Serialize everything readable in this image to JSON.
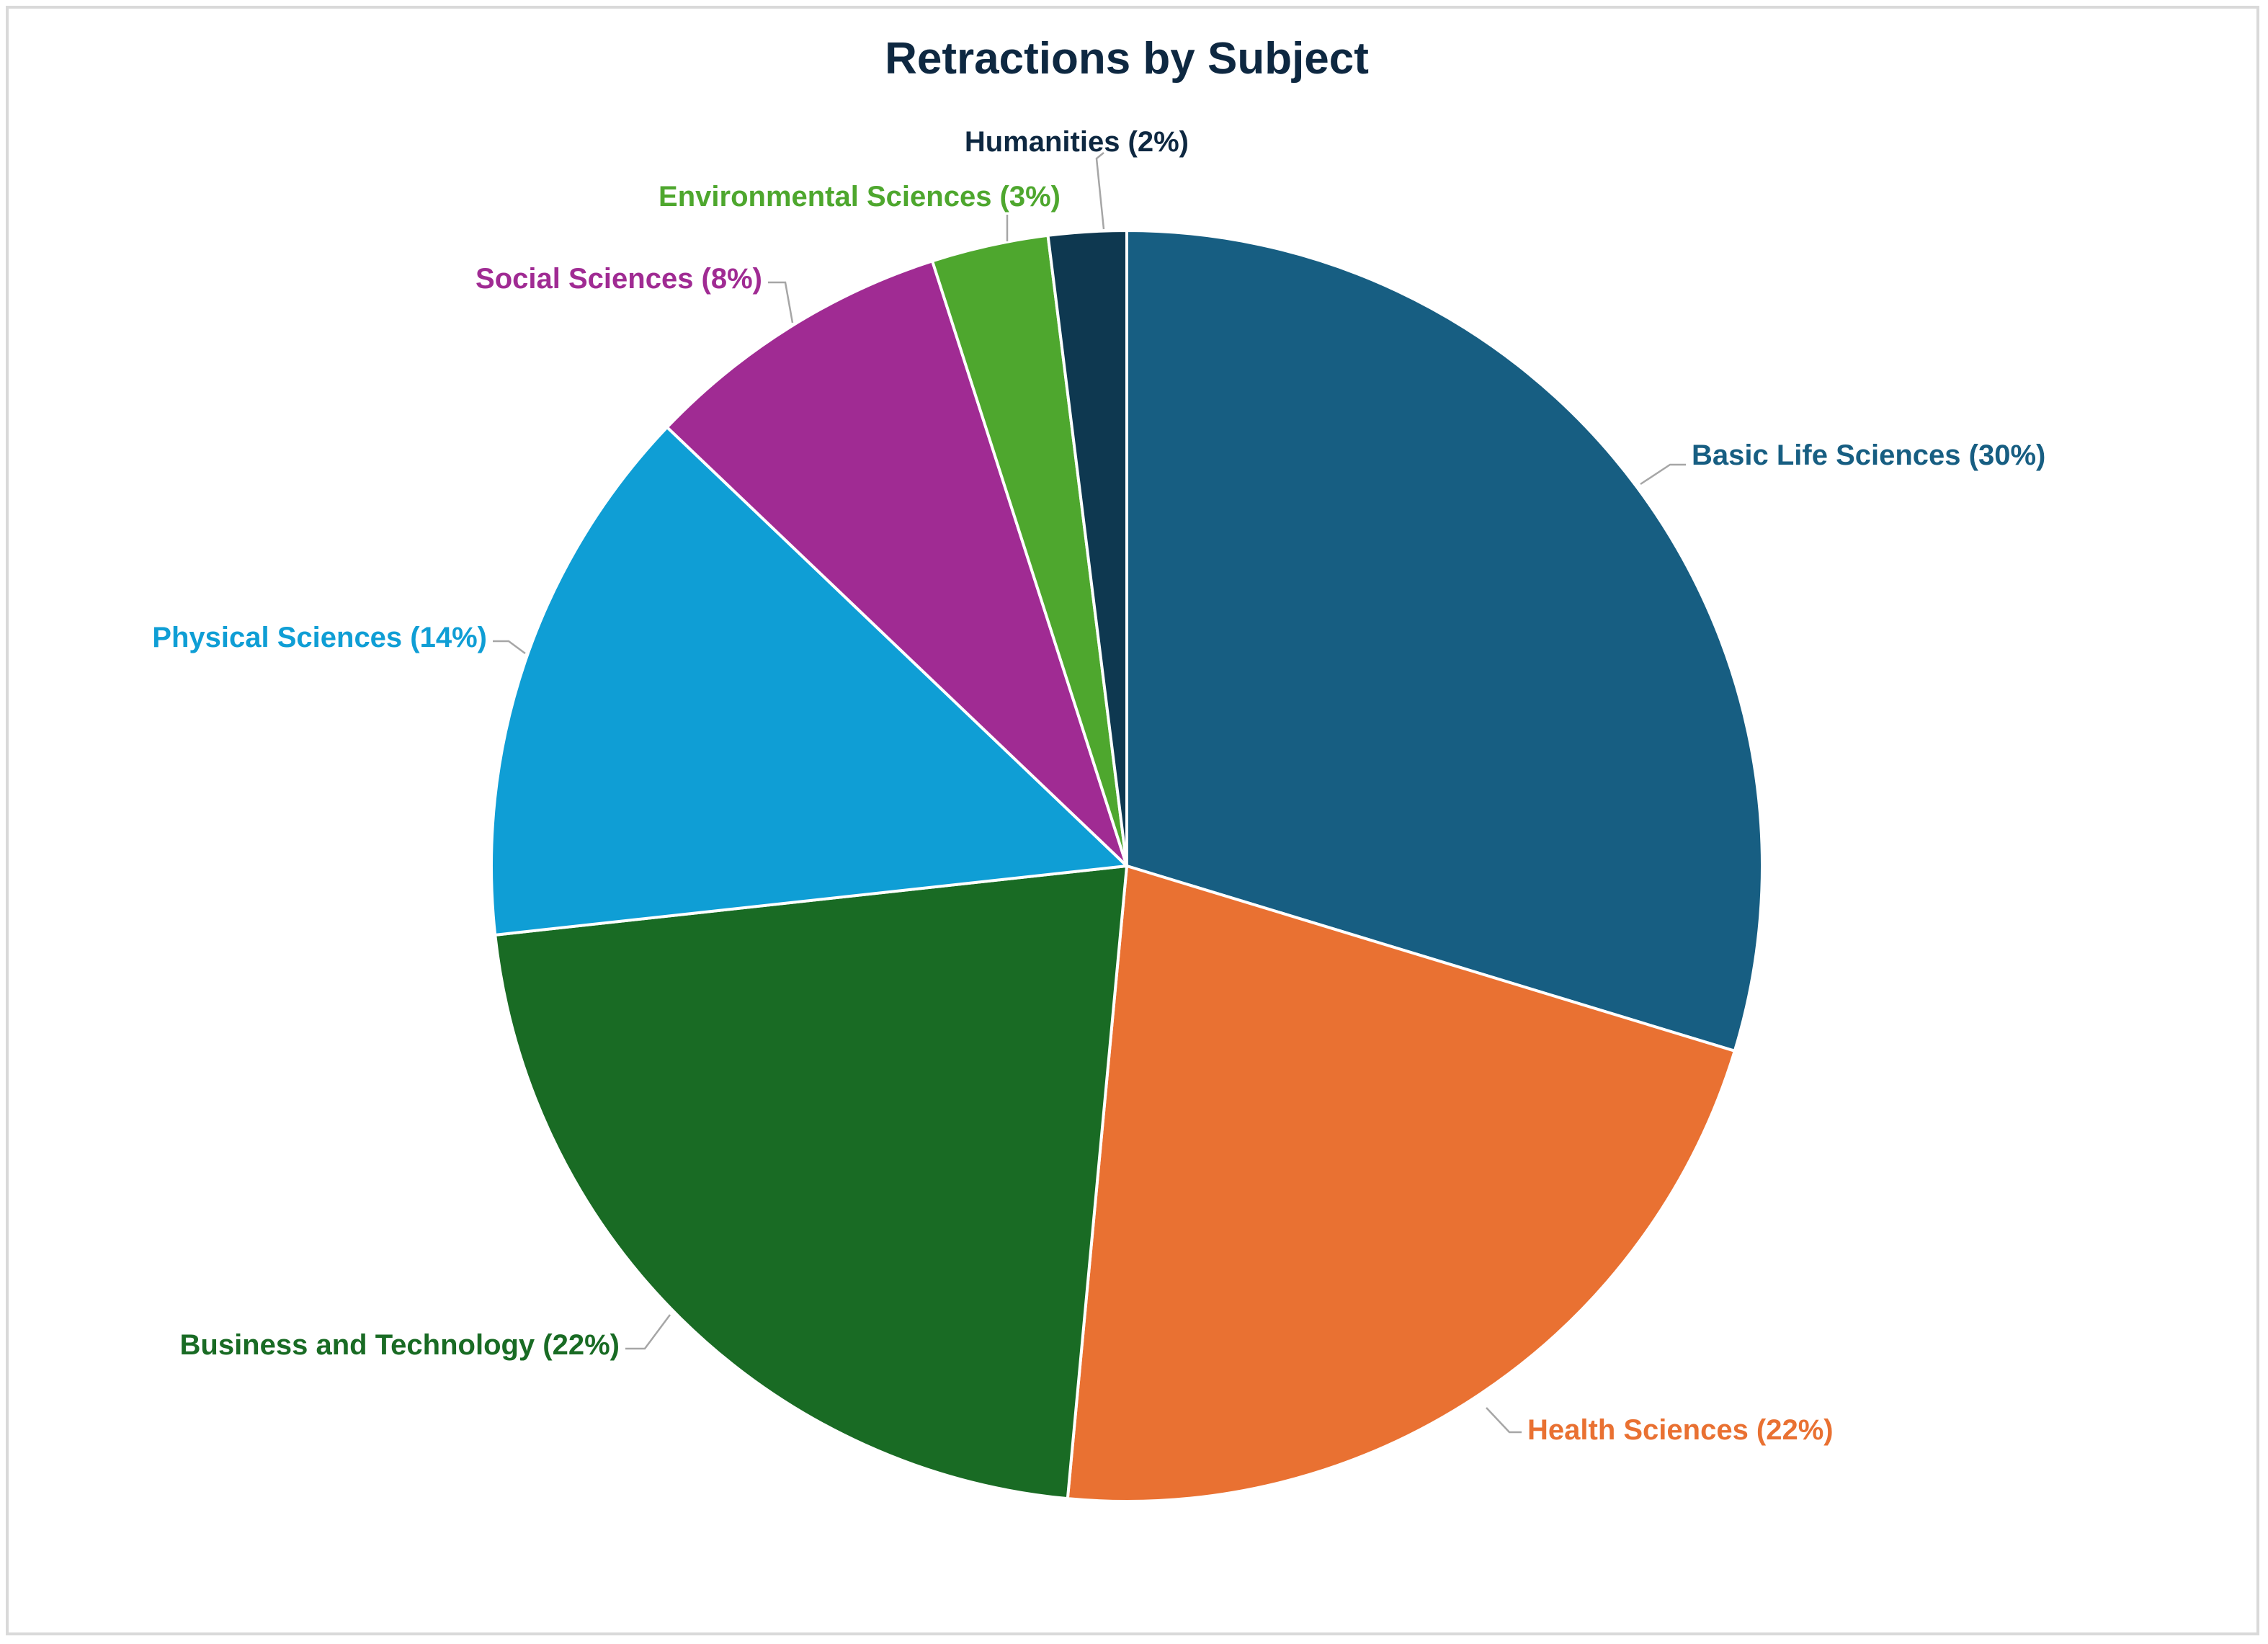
{
  "chart_data": {
    "type": "pie",
    "title": "Retractions by Subject",
    "title_color": "#0e2841",
    "start_angle_deg": 0,
    "direction": "clockwise",
    "slices": [
      {
        "category": "Basic Life Sciences",
        "percent": 30,
        "label": "Basic Life Sciences (30%)",
        "color": "#175e82"
      },
      {
        "category": "Health Sciences",
        "percent": 22,
        "label": "Health Sciences (22%)",
        "color": "#e97132"
      },
      {
        "category": "Business and Technology",
        "percent": 22,
        "label": "Business and Technology (22%)",
        "color": "#196b24"
      },
      {
        "category": "Physical Sciences",
        "percent": 14,
        "label": "Physical Sciences (14%)",
        "color": "#0f9ed5"
      },
      {
        "category": "Social Sciences",
        "percent": 8,
        "label": "Social Sciences (8%)",
        "color": "#a02b93"
      },
      {
        "category": "Environmental Sciences",
        "percent": 3,
        "label": "Environmental Sciences (3%)",
        "color": "#4ea72e"
      },
      {
        "category": "Humanities",
        "percent": 2,
        "label": "Humanities (2%)",
        "color": "#0e3850"
      }
    ],
    "label_placement": "outside with leader lines",
    "legend": "none"
  }
}
